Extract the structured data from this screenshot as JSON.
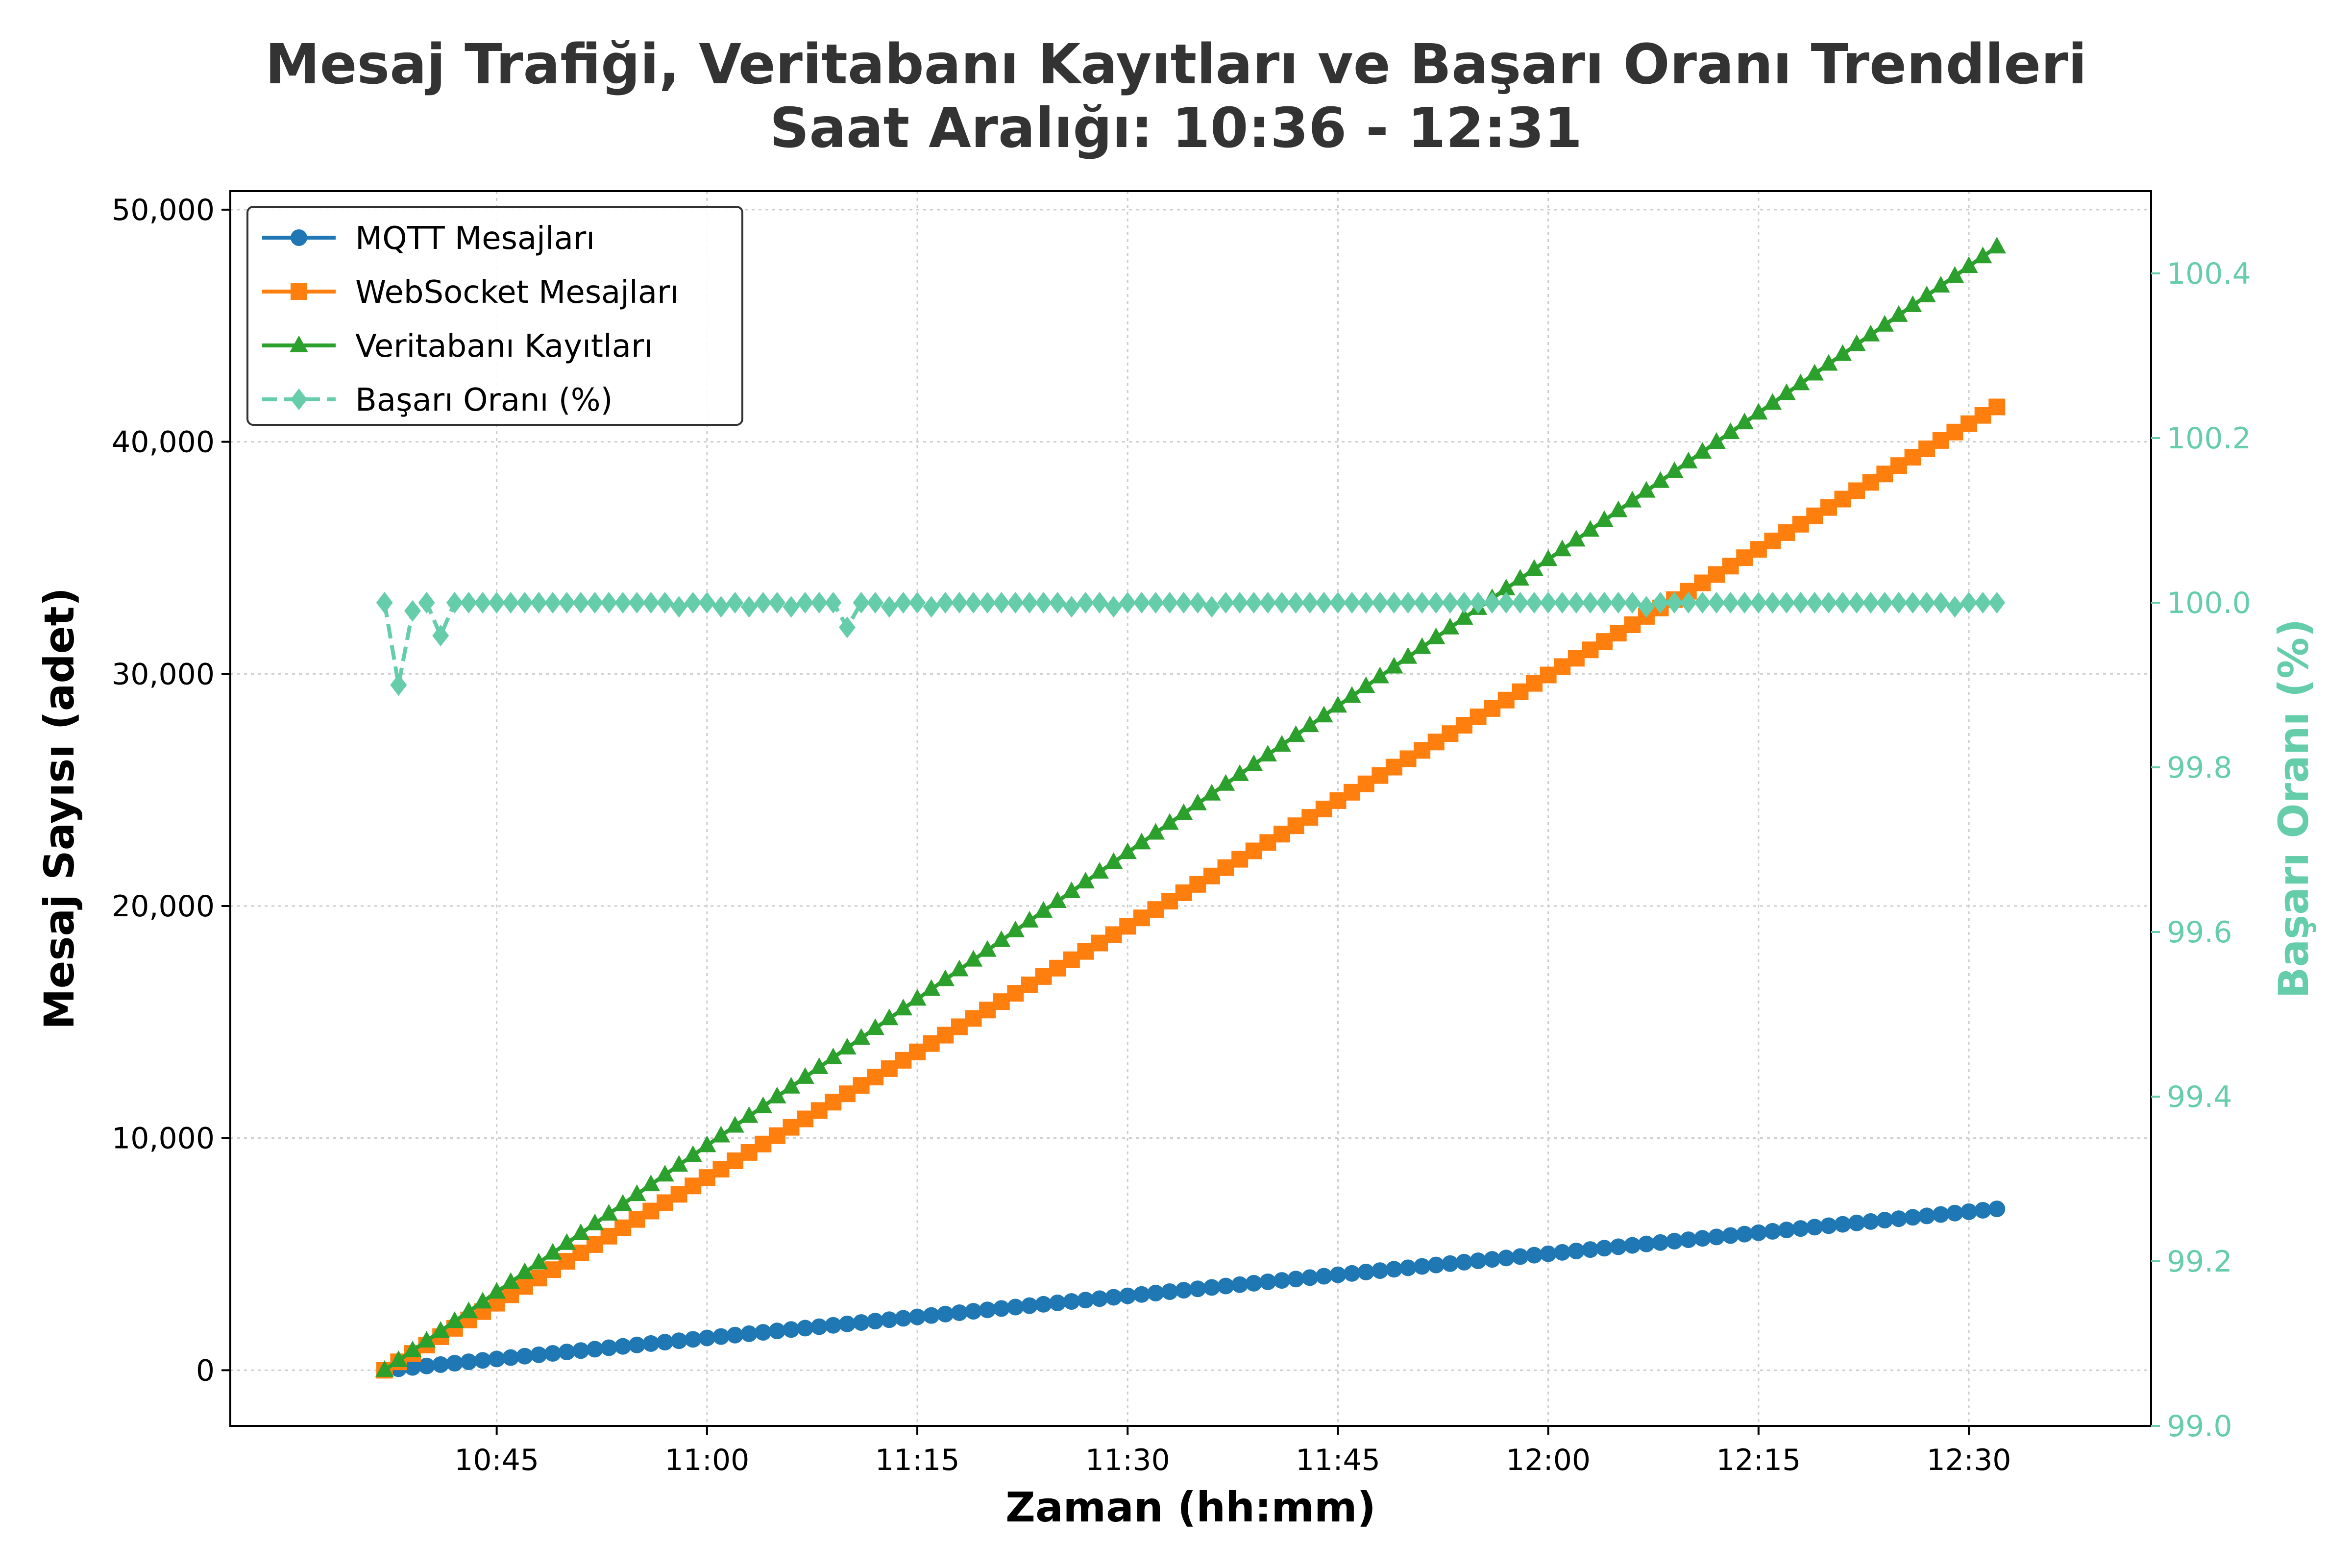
{
  "chart_data": {
    "type": "line",
    "title": "Mesaj Trafiği, Veritabanı Kayıtları ve Başarı Oranı Trendleri",
    "subtitle": "Saat Aralığı: 10:36 - 12:31",
    "xlabel": "Zaman (hh:mm)",
    "ylabel": "Mesaj Sayısı (adet)",
    "y2label": "Başarı Oranı (%)",
    "x_start": "10:37",
    "x_end": "12:32",
    "x_ticks": [
      "10:45",
      "11:00",
      "11:15",
      "11:30",
      "11:45",
      "12:00",
      "12:15",
      "12:30"
    ],
    "ylim": [
      -2400,
      50800
    ],
    "y_ticks": [
      "0",
      "10,000",
      "20,000",
      "30,000",
      "40,000",
      "50,000"
    ],
    "y2lim": [
      99.0,
      100.5
    ],
    "y2_ticks": [
      "99.0",
      "99.2",
      "99.4",
      "99.6",
      "99.8",
      "100.0",
      "100.2",
      "100.4"
    ],
    "grid": true,
    "legend_position": "top-left",
    "series": [
      {
        "name": "MQTT Mesajları",
        "axis": "left",
        "marker": "circle",
        "color": "#1f77b4",
        "dashed": false,
        "start": 0,
        "end": 6950
      },
      {
        "name": "WebSocket Mesajları",
        "axis": "left",
        "marker": "square",
        "color": "#ff7f0e",
        "dashed": false,
        "start": 0,
        "end": 41500
      },
      {
        "name": "Veritabanı Kayıtları",
        "axis": "left",
        "marker": "triangle",
        "color": "#2ca02c",
        "dashed": false,
        "start": 0,
        "end": 48400
      },
      {
        "name": "Başarı Oranı (%)",
        "axis": "right",
        "marker": "diamond",
        "color": "#66cdaa",
        "dashed": true,
        "baseline": 100.0,
        "dips": [
          {
            "time": "10:38",
            "value": 99.9
          },
          {
            "time": "10:39",
            "value": 99.99
          },
          {
            "time": "10:41",
            "value": 99.96
          },
          {
            "time": "10:58",
            "value": 99.995
          },
          {
            "time": "11:01",
            "value": 99.995
          },
          {
            "time": "11:03",
            "value": 99.995
          },
          {
            "time": "11:06",
            "value": 99.995
          },
          {
            "time": "11:10",
            "value": 99.97
          },
          {
            "time": "11:13",
            "value": 99.995
          },
          {
            "time": "11:16",
            "value": 99.995
          },
          {
            "time": "11:26",
            "value": 99.995
          },
          {
            "time": "11:29",
            "value": 99.995
          },
          {
            "time": "11:36",
            "value": 99.995
          },
          {
            "time": "12:07",
            "value": 99.995
          },
          {
            "time": "12:29",
            "value": 99.995
          }
        ]
      }
    ]
  }
}
